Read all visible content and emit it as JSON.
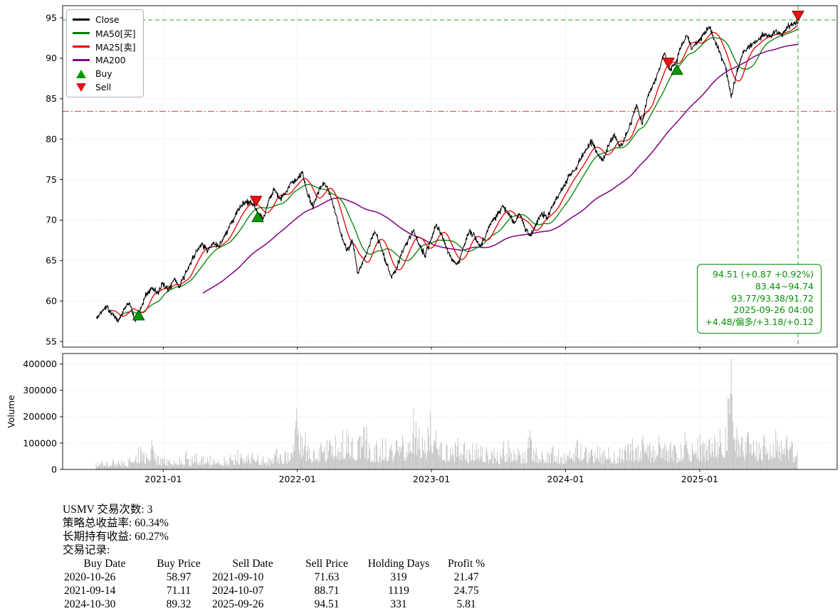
{
  "chart_data": [
    {
      "type": "line",
      "title": "",
      "x_unit": "months_since_2020-07",
      "xlim": [
        -3,
        66.3
      ],
      "ylim": [
        54.3,
        96.5
      ],
      "yticks": [
        55,
        60,
        65,
        70,
        75,
        80,
        85,
        90,
        95
      ],
      "xticks": [
        {
          "t": 6,
          "label": "2021-01"
        },
        {
          "t": 18,
          "label": "2022-01"
        },
        {
          "t": 30,
          "label": "2023-01"
        },
        {
          "t": 42,
          "label": "2024-01"
        },
        {
          "t": 54,
          "label": "2025-01"
        }
      ],
      "legend": [
        {
          "label": "Close",
          "color": "#000000",
          "kind": "line"
        },
        {
          "label": "MA50[买]",
          "color": "#008000",
          "kind": "line"
        },
        {
          "label": "MA25[卖]",
          "color": "#e60000",
          "kind": "line"
        },
        {
          "label": "MA200",
          "color": "#800080",
          "kind": "line"
        },
        {
          "label": "Buy",
          "color": "#009900",
          "kind": "triangle-up"
        },
        {
          "label": "Sell",
          "color": "#e61010",
          "kind": "triangle-down"
        }
      ],
      "series_colors": {
        "close": "#000000",
        "ma50": "#008000",
        "ma25": "#e60000",
        "ma200": "#800080"
      },
      "ma_windows": {
        "ma25": 25,
        "ma50": 50,
        "ma200": 200
      },
      "close": {
        "t_start": 0,
        "t_end": 62.8,
        "values": [
          57.9,
          58.7,
          59.3,
          58.4,
          57.5,
          58.9,
          59.8,
          57.6,
          59.0,
          60.8,
          61.6,
          61.0,
          62.2,
          61.3,
          62.8,
          61.7,
          63.4,
          64.6,
          66.2,
          67.0,
          66.3,
          67.2,
          66.8,
          67.9,
          69.4,
          70.6,
          71.8,
          72.3,
          72.0,
          70.9,
          70.2,
          72.4,
          73.9,
          72.6,
          73.3,
          74.6,
          74.9,
          75.9,
          73.0,
          71.6,
          73.8,
          74.5,
          73.2,
          70.8,
          68.0,
          66.2,
          67.4,
          63.4,
          65.0,
          66.8,
          68.6,
          67.0,
          64.8,
          62.9,
          64.2,
          66.1,
          67.6,
          68.8,
          66.9,
          65.6,
          67.3,
          69.3,
          68.2,
          66.4,
          65.0,
          64.6,
          66.8,
          68.7,
          68.0,
          66.7,
          68.3,
          69.8,
          70.6,
          71.7,
          70.9,
          69.6,
          70.8,
          69.0,
          68.0,
          69.6,
          70.9,
          70.2,
          71.9,
          73.0,
          74.2,
          75.6,
          76.2,
          77.6,
          78.8,
          79.7,
          78.1,
          77.3,
          79.2,
          80.6,
          79.0,
          80.2,
          82.1,
          84.3,
          81.8,
          85.2,
          86.8,
          88.4,
          90.6,
          88.6,
          89.3,
          91.4,
          92.8,
          91.2,
          92.0,
          92.9,
          93.9,
          92.3,
          90.6,
          88.9,
          85.1,
          88.2,
          90.4,
          91.3,
          91.9,
          92.4,
          93.1,
          92.6,
          93.4,
          92.9,
          93.8,
          94.2,
          94.51
        ]
      },
      "markers": {
        "buys": [
          {
            "t": 3.8,
            "price": 58.97
          },
          {
            "t": 14.45,
            "price": 71.11
          },
          {
            "t": 51.97,
            "price": 89.32
          }
        ],
        "sells": [
          {
            "t": 14.3,
            "price": 71.63
          },
          {
            "t": 51.2,
            "price": 88.71
          },
          {
            "t": 62.8,
            "price": 94.51
          }
        ],
        "buy_fill": "#009900",
        "buy_edge": "#004d00",
        "sell_fill": "#ee1111",
        "sell_edge": "#7a0000"
      },
      "ref_lines": {
        "h_green_dashed": 94.74,
        "h_green_color": "#3cb03c",
        "h_red_dashdot": 83.44,
        "h_red_color": "#f05050",
        "v_green_dashed_t": 62.8,
        "v_green_color": "#3cb03c"
      },
      "annotation": {
        "color": "#089008",
        "lines": [
          "94.51 (+0.87 +0.92%)",
          "83.44~94.74",
          "93.77/93.38/91.72",
          "2025-09-26 04:00",
          "+4.48/偏多/+3.18/+0.12"
        ]
      },
      "grid": true,
      "legend_position": "top-left"
    },
    {
      "type": "bar",
      "ylabel": "Volume",
      "ylim": [
        0,
        440000
      ],
      "yticks": [
        0,
        100000,
        200000,
        300000,
        400000
      ],
      "bar_color": "#c4c4c4",
      "grid": true,
      "values": [
        25000,
        32000,
        28000,
        40000,
        35000,
        30000,
        45000,
        38000,
        90000,
        60000,
        110000,
        50000,
        40000,
        35000,
        35000,
        45000,
        55000,
        40000,
        60000,
        50000,
        45000,
        40000,
        35000,
        50000,
        45000,
        55000,
        60000,
        50000,
        65000,
        55000,
        50000,
        45000,
        60000,
        55000,
        70000,
        65000,
        230000,
        120000,
        90000,
        70000,
        80000,
        90000,
        110000,
        130000,
        100000,
        150000,
        120000,
        110000,
        160000,
        100000,
        90000,
        85000,
        120000,
        95000,
        110000,
        130000,
        100000,
        230000,
        160000,
        110000,
        220000,
        150000,
        100000,
        90000,
        85000,
        120000,
        95000,
        80000,
        75000,
        90000,
        85000,
        70000,
        65000,
        80000,
        110000,
        75000,
        70000,
        65000,
        120000,
        80000,
        70000,
        65000,
        90000,
        75000,
        60000,
        70000,
        85000,
        95000,
        80000,
        75000,
        90000,
        70000,
        85000,
        65000,
        80000,
        90000,
        100000,
        85000,
        110000,
        95000,
        90000,
        130000,
        100000,
        90000,
        85000,
        95000,
        110000,
        100000,
        120000,
        105000,
        110000,
        130000,
        150000,
        160000,
        420000,
        160000,
        120000,
        140000,
        110000,
        100000,
        120000,
        95000,
        150000,
        110000,
        130000,
        100000,
        90000
      ]
    }
  ],
  "summary": {
    "line1": "USMV 交易次数: 3",
    "line2": "策略总收益率: 60.34%",
    "line3": "长期持有收益: 60.27%",
    "line4": "交易记录:"
  },
  "trades": {
    "headers": [
      "Buy Date",
      "Buy Price",
      "Sell Date",
      "Sell Price",
      "Holding Days",
      "Profit %"
    ],
    "rows": [
      [
        "2020-10-26",
        "58.97",
        "2021-09-10",
        "71.63",
        "319",
        "21.47"
      ],
      [
        "2021-09-14",
        "71.11",
        "2024-10-07",
        "88.71",
        "1119",
        "24.75"
      ],
      [
        "2024-10-30",
        "89.32",
        "2025-09-26",
        "94.51",
        "331",
        "5.81"
      ]
    ]
  }
}
